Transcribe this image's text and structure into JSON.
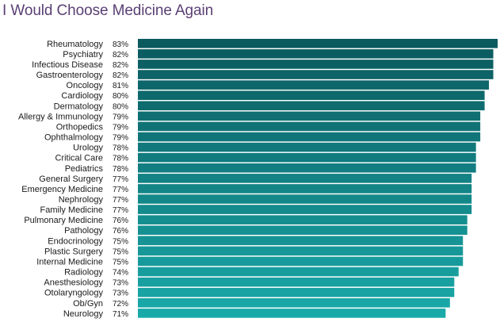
{
  "chart_data": {
    "type": "bar",
    "orientation": "horizontal",
    "title": "I Would Choose Medicine Again",
    "xlabel": "",
    "ylabel": "",
    "value_suffix": "%",
    "xlim": [
      0,
      83
    ],
    "grid": false,
    "legend": "none",
    "colors": {
      "bar_top": "#0b5a5e",
      "bar_bottom": "#1aa9a9",
      "title": "#5a3f73"
    },
    "categories": [
      "Rheumatology",
      "Psychiatry",
      "Infectious Disease",
      "Gastroenterology",
      "Oncology",
      "Cardiology",
      "Dermatology",
      "Allergy & Immunology",
      "Orthopedics",
      "Ophthalmology",
      "Urology",
      "Critical Care",
      "Pediatrics",
      "General Surgery",
      "Emergency Medicine",
      "Nephrology",
      "Family Medicine",
      "Pulmonary Medicine",
      "Pathology",
      "Endocrinology",
      "Plastic Surgery",
      "Internal Medicine",
      "Radiology",
      "Anesthesiology",
      "Otolaryngology",
      "Ob/Gyn",
      "Neurology"
    ],
    "values": [
      83,
      82,
      82,
      82,
      81,
      80,
      80,
      79,
      79,
      79,
      78,
      78,
      78,
      77,
      77,
      77,
      77,
      76,
      76,
      75,
      75,
      75,
      74,
      73,
      73,
      72,
      71
    ],
    "value_labels": [
      "83%",
      "82%",
      "82%",
      "82%",
      "81%",
      "80%",
      "80%",
      "79%",
      "79%",
      "79%",
      "78%",
      "78%",
      "78%",
      "77%",
      "77%",
      "77%",
      "77%",
      "76%",
      "76%",
      "75%",
      "75%",
      "75%",
      "74%",
      "73%",
      "73%",
      "72%",
      "71%"
    ]
  }
}
